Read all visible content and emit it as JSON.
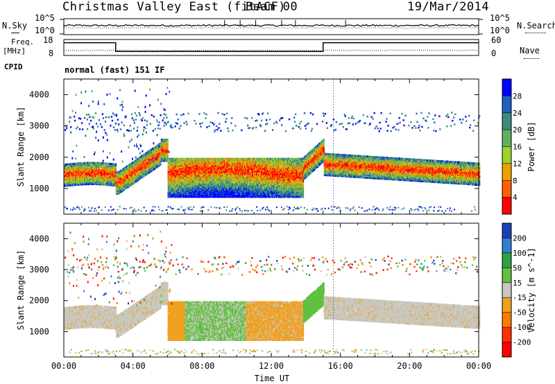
{
  "chart_data": {
    "type": "heatmap",
    "title": "Christmas Valley East (fitACF)",
    "beam_label": "Beam 00",
    "date": "19/Mar/2014",
    "mode_label": "normal (fast) 151 IF",
    "x_ticks": [
      "00:00",
      "04:00",
      "08:00",
      "12:00",
      "16:00",
      "20:00",
      "00:00"
    ],
    "x_range_hours": [
      0,
      24
    ],
    "xlabel": "Time UT",
    "top_panel": {
      "left_label": "N.Sky",
      "left_ticks": [
        "10^5",
        "10^0"
      ],
      "right_label": "N.Search",
      "right_ticks": [
        "10^5",
        "10^0"
      ]
    },
    "freq_panel": {
      "left_label_1": "Freq.",
      "left_label_2": "[MHz]",
      "left_ticks": [
        "18",
        "8"
      ],
      "right_label": "Nave",
      "right_ticks": [
        "60",
        "0"
      ],
      "cpid_label": "CPID",
      "freq_step_hours": [
        3.0,
        15.0
      ],
      "freq_high_level": 0.8,
      "freq_low_level": 0.25
    },
    "power_panel": {
      "ylabel": "Slant Range [km]",
      "y_ticks": [
        1000,
        2000,
        3000,
        4000
      ],
      "y_range_km": [
        180,
        4500
      ],
      "colorbar_label": "Power [dB]",
      "colorbar_ticks": [
        4,
        8,
        12,
        16,
        20,
        24,
        28
      ],
      "colorbar_colors": [
        "#0000ff",
        "#2060c0",
        "#3c8c7c",
        "#5fb060",
        "#9cd22a",
        "#f0a000",
        "#ff6000",
        "#ff0000"
      ]
    },
    "velocity_panel": {
      "ylabel": "Slant Range [km]",
      "y_ticks": [
        1000,
        2000,
        3000,
        4000
      ],
      "y_range_km": [
        180,
        4500
      ],
      "colorbar_label": "Velocity [m s^-1]",
      "colorbar_ticks": [
        200,
        100,
        50,
        15,
        -15,
        -50,
        -100,
        -200
      ],
      "colorbar_colors": [
        "#1e3fb4",
        "#2e7fd0",
        "#2ea040",
        "#60c040",
        "#c8c8c0",
        "#f0a020",
        "#ff7a00",
        "#ff3000",
        "#ff0000"
      ]
    }
  }
}
